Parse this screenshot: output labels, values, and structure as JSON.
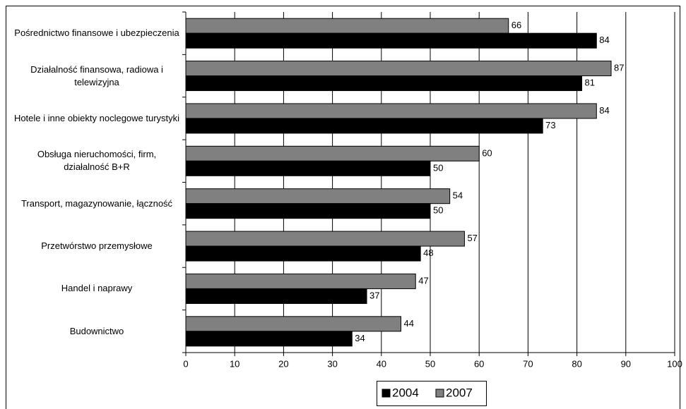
{
  "chart_data": {
    "type": "bar",
    "orientation": "horizontal",
    "categories": [
      "Pośrednictwo finansowe i ubezpieczenia",
      "Działalność finansowa, radiowa i telewizyjna",
      "Hotele i inne obiekty noclegowe turystyki",
      "Obsługa nieruchomości, firm, działalność B+R",
      "Transport, magazynowanie, łączność",
      "Przetwórstwo przemysłowe",
      "Handel i naprawy",
      "Budownictwo"
    ],
    "series": [
      {
        "name": "2004",
        "color": "#000000",
        "values": [
          84,
          81,
          73,
          50,
          50,
          48,
          37,
          34
        ]
      },
      {
        "name": "2007",
        "color": "#808080",
        "values": [
          66,
          87,
          84,
          60,
          54,
          57,
          47,
          44
        ]
      }
    ],
    "xlim": [
      0,
      100
    ],
    "xticks": [
      0,
      10,
      20,
      30,
      40,
      50,
      60,
      70,
      80,
      90,
      100
    ],
    "grid": true,
    "legend": "bottom"
  }
}
